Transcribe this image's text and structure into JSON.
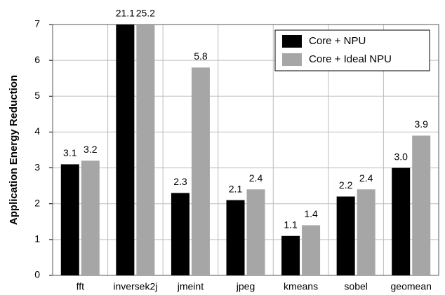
{
  "chart_data": {
    "type": "bar",
    "y_label": "Application Energy Reduction",
    "categories": [
      "fft",
      "inversek2j",
      "jmeint",
      "jpeg",
      "kmeans",
      "sobel",
      "geomean"
    ],
    "series": [
      {
        "name": "Core + NPU",
        "color": "#000000",
        "values": [
          3.1,
          21.1,
          2.3,
          2.1,
          1.1,
          2.2,
          3.0
        ],
        "value_labels": [
          "3.1",
          "21.1",
          "2.3",
          "2.1",
          "1.1",
          "2.2",
          "3.0"
        ]
      },
      {
        "name": "Core + Ideal NPU",
        "color": "#a6a6a6",
        "values": [
          3.2,
          25.2,
          5.8,
          2.4,
          1.4,
          2.4,
          3.9
        ],
        "value_labels": [
          "3.2",
          "25.2",
          "5.8",
          "2.4",
          "1.4",
          "2.4",
          "3.9"
        ]
      }
    ],
    "ylim": [
      0,
      7
    ],
    "yticks": [
      0,
      1,
      2,
      3,
      4,
      5,
      6,
      7
    ],
    "grid": true,
    "legend": "upper right"
  }
}
